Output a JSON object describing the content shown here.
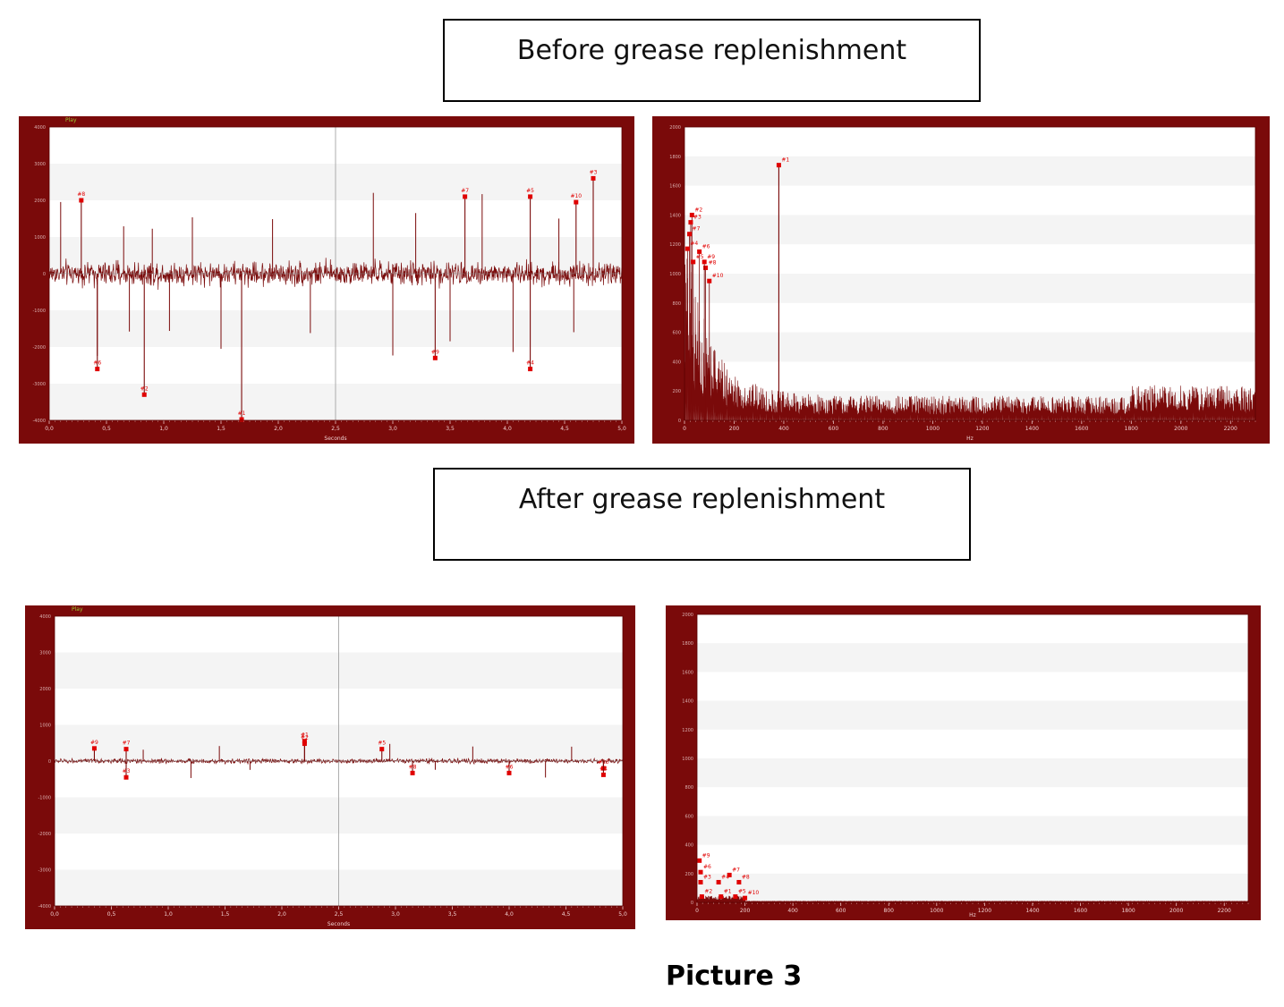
{
  "headers": {
    "before": "Before grease replenishment",
    "after": "After grease replenishment"
  },
  "caption": "Picture 3",
  "colors": {
    "frame": "#7a0a0a",
    "signal": "#7a0a0a",
    "marker": "#e00000",
    "band": "#f4f4f4",
    "plot_bg": "#ffffff"
  },
  "chart_data": [
    {
      "id": "before-time",
      "type": "line",
      "title": "",
      "play_label": "Play",
      "xlabel": "Seconds",
      "ylabel": "",
      "xlim": [
        0,
        5.0
      ],
      "ylim": [
        -4000,
        4000
      ],
      "xticks": [
        "0,0",
        "0,5",
        "1,0",
        "1,5",
        "2,0",
        "2,5",
        "3,0",
        "3,5",
        "4,0",
        "4,5",
        "5,0"
      ],
      "yticks": [
        "4000",
        "3000",
        "2000",
        "1000",
        "0",
        "-1000",
        "-2000",
        "-3000",
        "-4000"
      ],
      "cursor_x": 2.5,
      "noise_amplitude": 300,
      "markers": [
        {
          "label": "#8",
          "x": 0.28,
          "y": 2000
        },
        {
          "label": "#6",
          "x": 0.42,
          "y": -2600
        },
        {
          "label": "#2",
          "x": 0.83,
          "y": -3300
        },
        {
          "label": "#1",
          "x": 1.68,
          "y": -4300
        },
        {
          "label": "#9",
          "x": 3.37,
          "y": -2300
        },
        {
          "label": "#7",
          "x": 3.63,
          "y": 2100
        },
        {
          "label": "#5",
          "x": 4.2,
          "y": 2100
        },
        {
          "label": "#4",
          "x": 4.2,
          "y": -2600
        },
        {
          "label": "#10",
          "x": 4.6,
          "y": 1950
        },
        {
          "label": "#3",
          "x": 4.75,
          "y": 2600
        }
      ],
      "spikes_x": [
        0.1,
        0.42,
        0.65,
        0.7,
        0.9,
        1.05,
        1.25,
        1.5,
        1.95,
        2.28,
        2.83,
        3.0,
        3.2,
        3.5,
        3.78,
        4.05,
        4.45,
        4.58
      ]
    },
    {
      "id": "before-spectrum",
      "type": "line",
      "title": "",
      "xlabel": "Hz",
      "ylabel": "",
      "xlim": [
        0,
        2300
      ],
      "ylim": [
        0,
        2000
      ],
      "xticks": [
        "0",
        "200",
        "400",
        "600",
        "800",
        "1000",
        "1200",
        "1400",
        "1600",
        "1800",
        "2000",
        "2200"
      ],
      "yticks": [
        "2000",
        "1800",
        "1600",
        "1400",
        "1200",
        "1000",
        "800",
        "600",
        "400",
        "200",
        "0"
      ],
      "peak": {
        "x": 380,
        "y": 1740
      },
      "markers": [
        {
          "label": "#1",
          "x": 380,
          "y": 1740
        },
        {
          "label": "#2",
          "x": 30,
          "y": 1400
        },
        {
          "label": "#3",
          "x": 25,
          "y": 1350
        },
        {
          "label": "#7",
          "x": 20,
          "y": 1270
        },
        {
          "label": "#4",
          "x": 12,
          "y": 1170
        },
        {
          "label": "#6",
          "x": 60,
          "y": 1150
        },
        {
          "label": "#5",
          "x": 35,
          "y": 1080
        },
        {
          "label": "#8",
          "x": 85,
          "y": 1040
        },
        {
          "label": "#9",
          "x": 80,
          "y": 1080
        },
        {
          "label": "#10",
          "x": 100,
          "y": 950
        }
      ]
    },
    {
      "id": "after-time",
      "type": "line",
      "title": "",
      "play_label": "Play",
      "xlabel": "Seconds",
      "ylabel": "",
      "xlim": [
        0,
        5.0
      ],
      "ylim": [
        -4000,
        4000
      ],
      "xticks": [
        "0,0",
        "0,5",
        "1,0",
        "1,5",
        "2,0",
        "2,5",
        "3,0",
        "3,5",
        "4,0",
        "4,5",
        "5,0"
      ],
      "yticks": [
        "4000",
        "3000",
        "2000",
        "1000",
        "0",
        "-1000",
        "-2000",
        "-3000",
        "-4000"
      ],
      "cursor_x": 2.5,
      "noise_amplitude": 60,
      "markers": [
        {
          "label": "#9",
          "x": 0.35,
          "y": 350
        },
        {
          "label": "#7",
          "x": 0.63,
          "y": 330
        },
        {
          "label": "#3",
          "x": 0.63,
          "y": -450
        },
        {
          "label": "#1",
          "x": 2.2,
          "y": 550
        },
        {
          "label": "#2",
          "x": 2.2,
          "y": 480
        },
        {
          "label": "#5",
          "x": 2.88,
          "y": 330
        },
        {
          "label": "#8",
          "x": 3.15,
          "y": -330
        },
        {
          "label": "#6",
          "x": 4.0,
          "y": -330
        },
        {
          "label": "#10",
          "x": 4.83,
          "y": -200
        },
        {
          "label": "#4",
          "x": 4.83,
          "y": -380
        }
      ],
      "spikes_x": [
        0.78,
        1.2,
        1.45,
        1.72,
        2.95,
        3.35,
        3.68,
        4.32,
        4.55
      ]
    },
    {
      "id": "after-spectrum",
      "type": "line",
      "title": "",
      "xlabel": "Hz",
      "ylabel": "",
      "xlim": [
        0,
        2300
      ],
      "ylim": [
        0,
        2000
      ],
      "xticks": [
        "0",
        "200",
        "400",
        "600",
        "800",
        "1000",
        "1200",
        "1400",
        "1600",
        "1800",
        "2000",
        "2200"
      ],
      "yticks": [
        "2000",
        "1800",
        "1600",
        "1400",
        "1200",
        "1000",
        "800",
        "600",
        "400",
        "200",
        "0"
      ],
      "markers": [
        {
          "label": "#9",
          "x": 10,
          "y": 290
        },
        {
          "label": "#6",
          "x": 15,
          "y": 210
        },
        {
          "label": "#3",
          "x": 15,
          "y": 140
        },
        {
          "label": "#4",
          "x": 90,
          "y": 140
        },
        {
          "label": "#7",
          "x": 135,
          "y": 190
        },
        {
          "label": "#8",
          "x": 175,
          "y": 140
        },
        {
          "label": "#2",
          "x": 20,
          "y": 40
        },
        {
          "label": "#1",
          "x": 100,
          "y": 40
        },
        {
          "label": "#5",
          "x": 160,
          "y": 40
        },
        {
          "label": "#10",
          "x": 200,
          "y": 30
        }
      ]
    }
  ]
}
